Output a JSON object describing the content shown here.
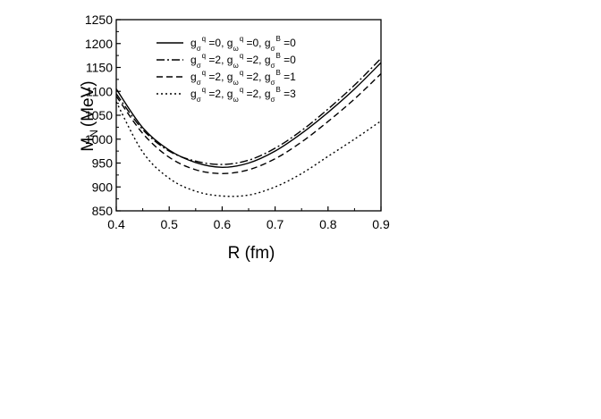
{
  "chart_data": {
    "type": "line",
    "xlabel": "R (fm)",
    "ylabel": {
      "main": "M",
      "sub": "N",
      "unit": "(MeV)"
    },
    "xlim": [
      0.4,
      0.9
    ],
    "ylim": [
      850,
      1250
    ],
    "xticks": [
      "0.4",
      "0.5",
      "0.6",
      "0.7",
      "0.8",
      "0.9"
    ],
    "yticks": [
      "850",
      "900",
      "950",
      "1000",
      "1050",
      "1100",
      "1150",
      "1200",
      "1250"
    ],
    "grid": false,
    "legend_position": "top-center",
    "series": [
      {
        "name": "g_σ^q=0, g_ω^q=0, g_σ^B=0",
        "label_parts": [
          "g",
          "σ",
          "q",
          " =0, g",
          "ω",
          "q",
          " =0, g",
          "σ",
          "B",
          " =0"
        ],
        "style": "solid",
        "x": [
          0.4,
          0.45,
          0.5,
          0.55,
          0.6,
          0.65,
          0.7,
          0.75,
          0.8,
          0.85,
          0.9
        ],
        "y": [
          1105,
          1024,
          977,
          951,
          941,
          950,
          975,
          1012,
          1056,
          1105,
          1160
        ]
      },
      {
        "name": "g_σ^q=2, g_ω^q=2, g_σ^B=0",
        "label_parts": [
          "g",
          "σ",
          "q",
          " =2, g",
          "ω",
          "q",
          " =2, g",
          "σ",
          "B",
          " =0"
        ],
        "style": "dashdot",
        "x": [
          0.4,
          0.45,
          0.5,
          0.55,
          0.6,
          0.65,
          0.7,
          0.75,
          0.8,
          0.85,
          0.9
        ],
        "y": [
          1095,
          1020,
          975,
          954,
          947,
          956,
          981,
          1018,
          1063,
          1113,
          1169
        ]
      },
      {
        "name": "g_σ^q=2, g_ω^q=2, g_σ^B=1",
        "label_parts": [
          "g",
          "σ",
          "q",
          " =2, g",
          "ω",
          "q",
          " =2, g",
          "σ",
          "B",
          " =1"
        ],
        "style": "dashed",
        "x": [
          0.4,
          0.45,
          0.5,
          0.55,
          0.6,
          0.65,
          0.7,
          0.75,
          0.8,
          0.85,
          0.9
        ],
        "y": [
          1090,
          1012,
          962,
          936,
          928,
          936,
          959,
          994,
          1037,
          1084,
          1137
        ]
      },
      {
        "name": "g_σ^q=2, g_ω^q=2, g_σ^B=3",
        "label_parts": [
          "g",
          "σ",
          "q",
          " =2, g",
          "ω",
          "q",
          " =2, g",
          "σ",
          "B",
          " =3"
        ],
        "style": "dotted",
        "x": [
          0.4,
          0.45,
          0.5,
          0.55,
          0.6,
          0.65,
          0.7,
          0.75,
          0.8,
          0.85,
          0.9
        ],
        "y": [
          1078,
          973,
          918,
          891,
          881,
          883,
          900,
          928,
          964,
          1000,
          1038
        ]
      }
    ]
  }
}
